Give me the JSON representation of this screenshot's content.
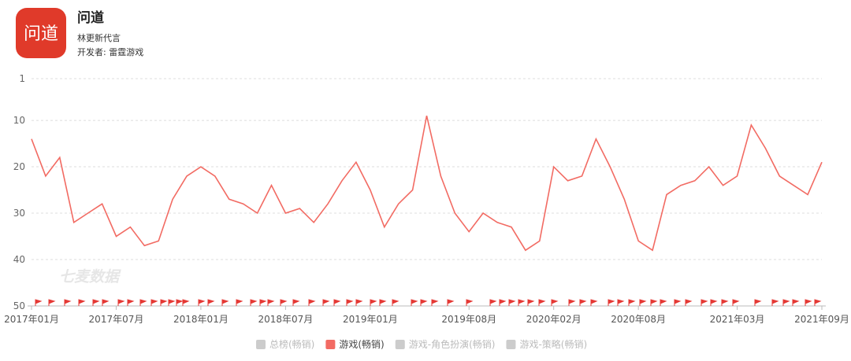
{
  "app": {
    "icon_text": "问道",
    "name": "问道",
    "slogan": "林更新代言",
    "developer": "开发者: 雷霆游戏",
    "watermark": "七麦数据"
  },
  "chart_data": {
    "type": "line",
    "reversed": true,
    "x": [
      "2017-01",
      "2017-02",
      "2017-03",
      "2017-04",
      "2017-05",
      "2017-06",
      "2017-07",
      "2017-08",
      "2017-09",
      "2017-10",
      "2017-11",
      "2017-12",
      "2018-01",
      "2018-02",
      "2018-03",
      "2018-04",
      "2018-05",
      "2018-06",
      "2018-07",
      "2018-08",
      "2018-09",
      "2018-10",
      "2018-11",
      "2018-12",
      "2019-01",
      "2019-02",
      "2019-03",
      "2019-04",
      "2019-05",
      "2019-06",
      "2019-07",
      "2019-08",
      "2019-09",
      "2019-10",
      "2019-11",
      "2019-12",
      "2020-01",
      "2020-02",
      "2020-03",
      "2020-04",
      "2020-05",
      "2020-06",
      "2020-07",
      "2020-08",
      "2020-09",
      "2020-10",
      "2020-11",
      "2020-12",
      "2021-01",
      "2021-02",
      "2021-03",
      "2021-04",
      "2021-05",
      "2021-06",
      "2021-07",
      "2021-08",
      "2021-09"
    ],
    "series": [
      {
        "name": "游戏(畅销)",
        "color": "#f26b63",
        "values": [
          14,
          22,
          18,
          32,
          30,
          28,
          35,
          33,
          37,
          36,
          27,
          22,
          20,
          22,
          27,
          28,
          30,
          24,
          30,
          29,
          32,
          28,
          23,
          19,
          25,
          33,
          28,
          25,
          9,
          22,
          30,
          34,
          30,
          32,
          33,
          38,
          36,
          20,
          23,
          22,
          14,
          20,
          27,
          36,
          38,
          26,
          24,
          23,
          20,
          24,
          22,
          11,
          16,
          22,
          24,
          26,
          19
        ]
      }
    ],
    "legend_items": [
      {
        "name": "总榜(畅销)",
        "color": "#cccccc"
      },
      {
        "name": "游戏(畅销)",
        "color": "#f26b63"
      },
      {
        "name": "游戏-角色扮演(畅销)",
        "color": "#cccccc"
      },
      {
        "name": "游戏-策略(畅销)",
        "color": "#cccccc"
      }
    ],
    "ylim": [
      1,
      50
    ],
    "yticks": [
      1,
      10,
      20,
      30,
      40,
      50
    ],
    "xticks": [
      {
        "value": "2017-01",
        "label": "2017年01月"
      },
      {
        "value": "2017-07",
        "label": "2017年07月"
      },
      {
        "value": "2018-01",
        "label": "2018年01月"
      },
      {
        "value": "2018-07",
        "label": "2018年07月"
      },
      {
        "value": "2019-01",
        "label": "2019年01月"
      },
      {
        "value": "2019-08",
        "label": "2019年08月"
      },
      {
        "value": "2020-02",
        "label": "2020年02月"
      },
      {
        "value": "2020-08",
        "label": "2020年08月"
      },
      {
        "value": "2021-03",
        "label": "2021年03月"
      },
      {
        "value": "2021-09",
        "label": "2021年09月"
      }
    ],
    "grid": true
  }
}
